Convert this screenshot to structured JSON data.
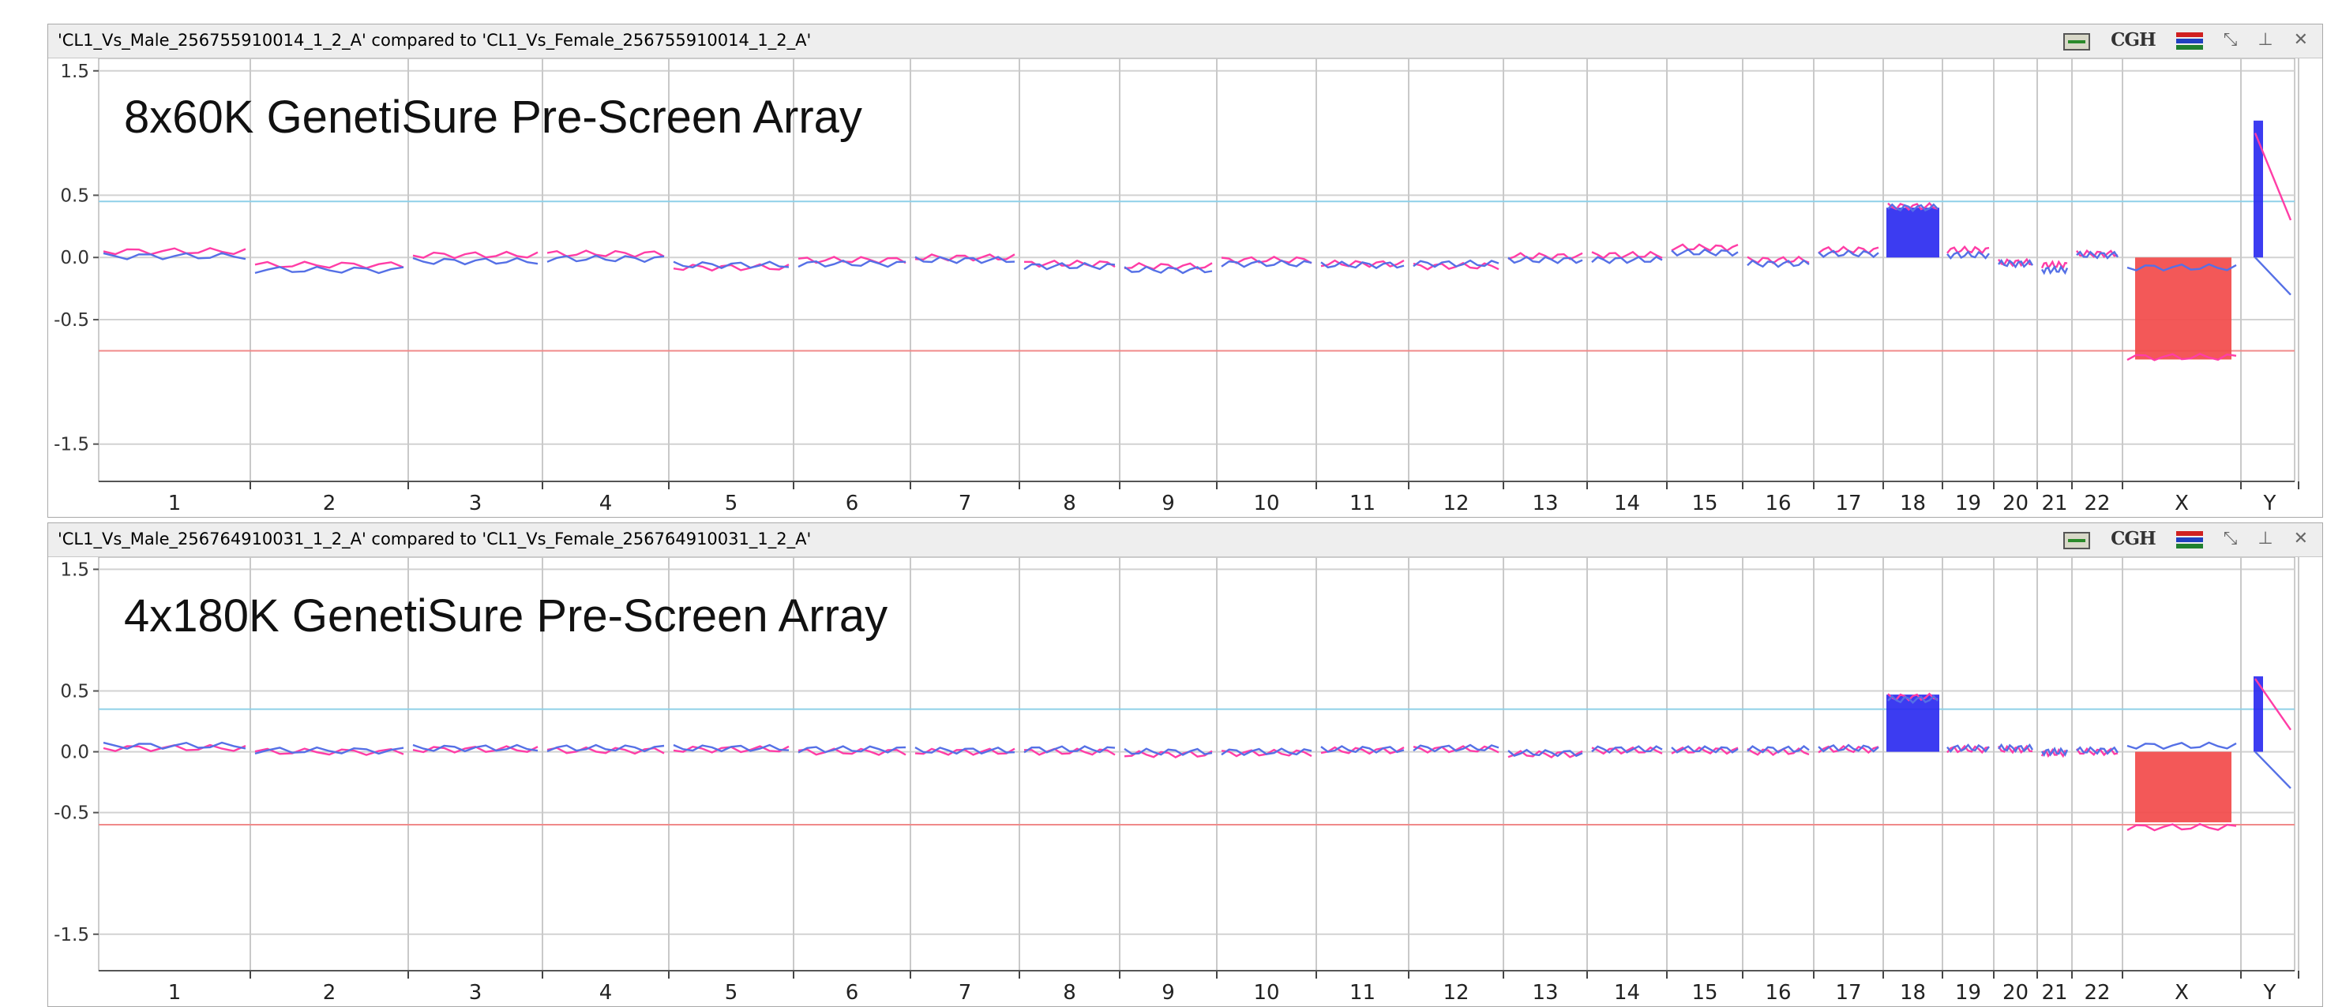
{
  "chart_data": [
    {
      "type": "area",
      "title": "'CL1_Vs_Male_256755910014_1_2_A' compared to 'CL1_Vs_Female_256755910014_1_2_A'",
      "annotation": "8x60K GenetiSure Pre-Screen Array",
      "xlabel": "",
      "ylabel": "",
      "ylim": [
        -1.8,
        1.6
      ],
      "yticks": [
        1.5,
        0.5,
        0.0,
        -0.5,
        -1.5
      ],
      "ytick_labels": [
        "1.5",
        "0.5",
        "0.0",
        "-0.5",
        "-1.5"
      ],
      "thresholds": [
        {
          "value": 0.45,
          "color": "#8fd0e8"
        },
        {
          "value": -0.75,
          "color": "#f08a8a"
        }
      ],
      "categories": [
        "1",
        "2",
        "3",
        "4",
        "5",
        "6",
        "7",
        "8",
        "9",
        "10",
        "11",
        "12",
        "13",
        "14",
        "15",
        "16",
        "17",
        "18",
        "19",
        "20",
        "21",
        "22",
        "X",
        "Y"
      ],
      "series": [
        {
          "color": "#ff3da6",
          "values": [
            0.05,
            -0.06,
            0.02,
            0.03,
            -0.08,
            -0.02,
            0.0,
            -0.05,
            -0.07,
            -0.02,
            -0.05,
            -0.07,
            0.01,
            0.02,
            0.08,
            -0.02,
            0.06,
            0.41,
            0.06,
            -0.04,
            -0.06,
            0.03,
            -0.8,
            1.0
          ]
        },
        {
          "color": "#5570e6",
          "values": [
            0.01,
            -0.1,
            -0.03,
            -0.01,
            -0.06,
            -0.05,
            -0.02,
            -0.07,
            -0.1,
            -0.05,
            -0.06,
            -0.05,
            -0.02,
            -0.02,
            0.04,
            -0.05,
            0.03,
            0.4,
            0.02,
            -0.05,
            -0.1,
            0.02,
            -0.08,
            0.0
          ]
        }
      ],
      "filled_segments": [
        {
          "category": "18",
          "value": 0.4,
          "color": "#2b2bf0"
        },
        {
          "category": "X",
          "value": -0.82,
          "color": "#f24a4a"
        },
        {
          "category": "Y",
          "value": 1.1,
          "color": "#2b2bf0"
        }
      ]
    },
    {
      "type": "area",
      "title": "'CL1_Vs_Male_256764910031_1_2_A' compared to 'CL1_Vs_Female_256764910031_1_2_A'",
      "annotation": "4x180K GenetiSure Pre-Screen Array",
      "xlabel": "",
      "ylabel": "",
      "ylim": [
        -1.8,
        1.6
      ],
      "yticks": [
        1.5,
        0.5,
        0.0,
        -0.5,
        -1.5
      ],
      "ytick_labels": [
        "1.5",
        "0.5",
        "0.0",
        "-0.5",
        "-1.5"
      ],
      "thresholds": [
        {
          "value": 0.35,
          "color": "#8fd0e8"
        },
        {
          "value": -0.6,
          "color": "#f08a8a"
        }
      ],
      "categories": [
        "1",
        "2",
        "3",
        "4",
        "5",
        "6",
        "7",
        "8",
        "9",
        "10",
        "11",
        "12",
        "13",
        "14",
        "15",
        "16",
        "17",
        "18",
        "19",
        "20",
        "21",
        "22",
        "X",
        "Y"
      ],
      "series": [
        {
          "color": "#ff3da6",
          "values": [
            0.03,
            0.0,
            0.02,
            0.01,
            0.02,
            0.0,
            0.0,
            0.0,
            -0.02,
            -0.01,
            0.01,
            0.02,
            -0.02,
            0.01,
            0.01,
            0.0,
            0.02,
            0.45,
            0.02,
            0.02,
            -0.01,
            0.0,
            -0.62,
            0.6
          ]
        },
        {
          "color": "#5570e6",
          "values": [
            0.05,
            0.01,
            0.03,
            0.03,
            0.03,
            0.02,
            0.01,
            0.02,
            0.0,
            0.0,
            0.02,
            0.03,
            -0.01,
            0.02,
            0.02,
            0.02,
            0.03,
            0.43,
            0.03,
            0.03,
            0.0,
            0.01,
            0.05,
            0.0
          ]
        }
      ],
      "filled_segments": [
        {
          "category": "18",
          "value": 0.47,
          "color": "#2b2bf0"
        },
        {
          "category": "X",
          "value": -0.58,
          "color": "#f24a4a"
        },
        {
          "category": "Y",
          "value": 0.62,
          "color": "#2b2bf0"
        }
      ]
    }
  ]
}
